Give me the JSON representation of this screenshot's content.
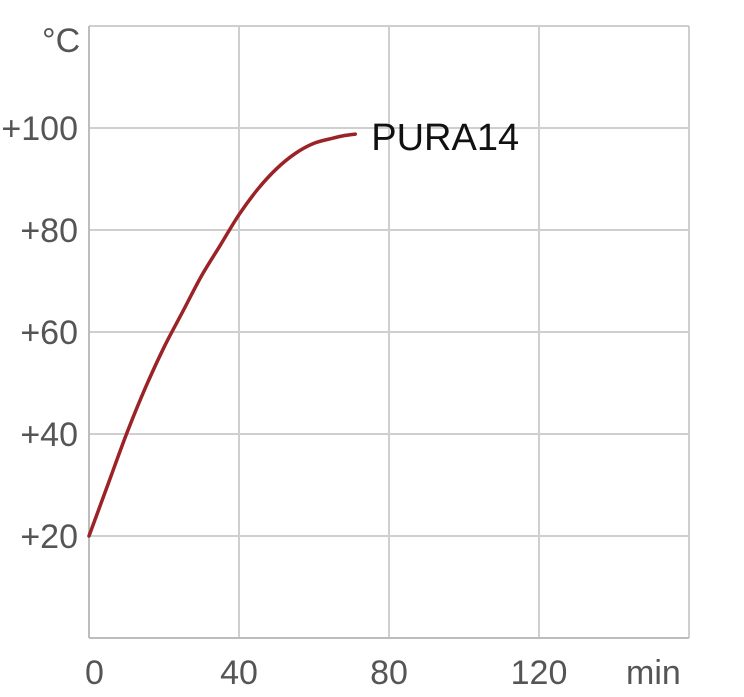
{
  "chart_data": {
    "type": "line",
    "title": "",
    "xlabel": "min",
    "ylabel": "°C",
    "xlim": [
      0,
      160
    ],
    "ylim": [
      0,
      120
    ],
    "grid": true,
    "x_ticks": [
      0,
      40,
      80,
      120
    ],
    "x_tick_labels": [
      "0",
      "40",
      "80",
      "120"
    ],
    "y_ticks": [
      20,
      40,
      60,
      80,
      100
    ],
    "y_tick_labels": [
      "+20",
      "+40",
      "+60",
      "+80",
      "+100"
    ],
    "series": [
      {
        "name": "PURA14",
        "color": "#9b2226",
        "x": [
          0,
          5,
          10,
          15,
          20,
          25,
          30,
          35,
          40,
          45,
          50,
          55,
          60,
          65,
          68,
          71
        ],
        "y": [
          20,
          30,
          40,
          49,
          57,
          64,
          71,
          77,
          83,
          88,
          92,
          95,
          97,
          98,
          98.5,
          98.8
        ]
      }
    ]
  }
}
